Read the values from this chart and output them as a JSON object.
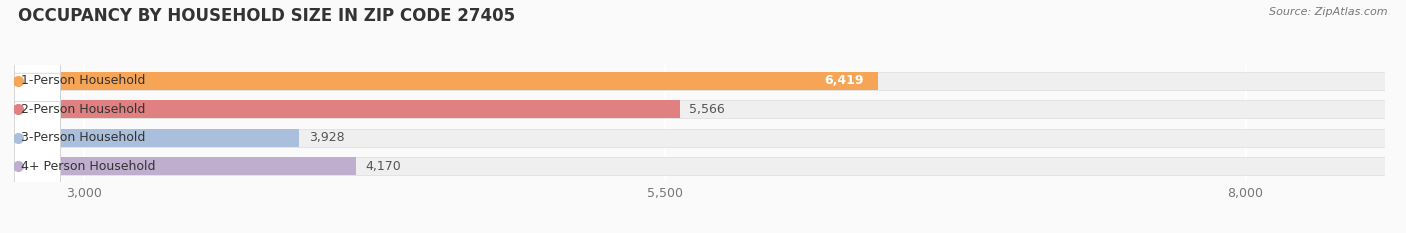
{
  "title": "OCCUPANCY BY HOUSEHOLD SIZE IN ZIP CODE 27405",
  "source": "Source: ZipAtlas.com",
  "categories": [
    "1-Person Household",
    "2-Person Household",
    "3-Person Household",
    "4+ Person Household"
  ],
  "values": [
    6419,
    5566,
    3928,
    4170
  ],
  "bar_colors": [
    "#F5A555",
    "#E08080",
    "#AABFDB",
    "#C0AECF"
  ],
  "value_on_bar": [
    true,
    false,
    false,
    false
  ],
  "value_colors": [
    "white",
    "#555555",
    "#555555",
    "#555555"
  ],
  "xlim": [
    2700,
    8600
  ],
  "xticks": [
    3000,
    5500,
    8000
  ],
  "bar_height": 0.62,
  "row_bg_color": "#EFEFEF",
  "background_color": "#FAFAFA",
  "title_fontsize": 12,
  "source_fontsize": 8,
  "tick_fontsize": 9,
  "label_fontsize": 9,
  "value_fontsize": 9,
  "title_color": "#333333",
  "source_color": "#777777"
}
